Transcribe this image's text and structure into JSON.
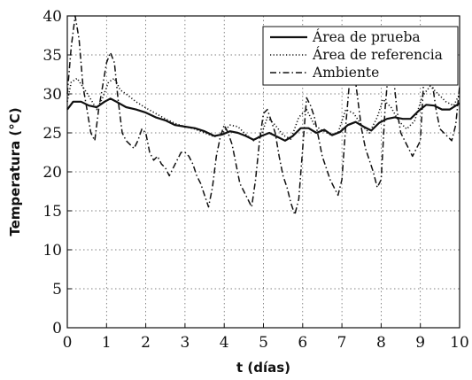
{
  "chart_data": {
    "type": "line",
    "title": "",
    "xlabel": "t (días)",
    "ylabel": "Temperatura (°C)",
    "xlim": [
      0,
      10
    ],
    "ylim": [
      0,
      40
    ],
    "xticks": [
      0,
      1,
      2,
      3,
      4,
      5,
      6,
      7,
      8,
      9,
      10
    ],
    "yticks": [
      0,
      5,
      10,
      15,
      20,
      25,
      30,
      35,
      40
    ],
    "grid": "dotted",
    "legend_position": "top-right",
    "series": [
      {
        "name": "Área de prueba",
        "style": "solid",
        "color": "#111111",
        "x": [
          0,
          0.15,
          0.35,
          0.55,
          0.75,
          0.95,
          1.1,
          1.25,
          1.5,
          1.75,
          2.0,
          2.25,
          2.5,
          2.75,
          3.0,
          3.25,
          3.5,
          3.75,
          3.95,
          4.15,
          4.35,
          4.55,
          4.75,
          4.95,
          5.15,
          5.35,
          5.55,
          5.75,
          5.95,
          6.15,
          6.35,
          6.55,
          6.75,
          6.95,
          7.15,
          7.35,
          7.55,
          7.75,
          7.95,
          8.15,
          8.35,
          8.55,
          8.75,
          8.95,
          9.15,
          9.35,
          9.55,
          9.75,
          10.0
        ],
        "values": [
          28.0,
          29.0,
          29.0,
          28.5,
          28.3,
          29.0,
          29.4,
          29.0,
          28.3,
          28.0,
          27.6,
          27.0,
          26.6,
          26.0,
          25.8,
          25.6,
          25.2,
          24.6,
          24.8,
          25.2,
          25.0,
          24.6,
          24.1,
          24.6,
          25.0,
          24.5,
          24.0,
          24.6,
          25.6,
          25.6,
          25.0,
          25.4,
          24.7,
          25.1,
          26.0,
          26.4,
          25.8,
          25.3,
          26.3,
          26.8,
          27.0,
          26.8,
          26.8,
          27.8,
          28.6,
          28.5,
          28.0,
          28.0,
          28.8
        ]
      },
      {
        "name": "Área de referencia",
        "style": "dotted",
        "color": "#111111",
        "x": [
          0,
          0.1,
          0.25,
          0.45,
          0.6,
          0.75,
          0.9,
          1.05,
          1.2,
          1.35,
          1.55,
          1.75,
          2.0,
          2.25,
          2.5,
          2.75,
          3.0,
          3.25,
          3.5,
          3.75,
          3.95,
          4.15,
          4.35,
          4.55,
          4.75,
          4.95,
          5.1,
          5.3,
          5.5,
          5.7,
          5.9,
          6.1,
          6.3,
          6.5,
          6.7,
          6.9,
          7.1,
          7.3,
          7.5,
          7.7,
          7.9,
          8.05,
          8.25,
          8.45,
          8.65,
          8.85,
          9.05,
          9.25,
          9.45,
          9.65,
          9.85,
          10.0
        ],
        "values": [
          29.0,
          31.5,
          32.0,
          30.5,
          29.3,
          28.0,
          29.5,
          31.5,
          32.0,
          30.5,
          29.8,
          29.0,
          28.2,
          27.5,
          26.8,
          26.2,
          25.8,
          25.5,
          25.0,
          24.5,
          25.0,
          26.0,
          25.8,
          24.8,
          24.0,
          24.8,
          27.0,
          26.0,
          24.7,
          24.2,
          27.0,
          28.0,
          26.0,
          25.3,
          24.8,
          25.0,
          28.0,
          27.5,
          26.0,
          25.0,
          27.0,
          29.3,
          28.3,
          26.5,
          25.5,
          26.5,
          29.7,
          31.0,
          30.0,
          29.0,
          28.5,
          30.0
        ]
      },
      {
        "name": "Ambiente",
        "style": "dash-dot",
        "color": "#111111",
        "x": [
          0,
          0.1,
          0.2,
          0.3,
          0.4,
          0.5,
          0.6,
          0.7,
          0.8,
          0.9,
          1.0,
          1.1,
          1.2,
          1.3,
          1.4,
          1.5,
          1.6,
          1.7,
          1.8,
          1.9,
          2.0,
          2.1,
          2.2,
          2.3,
          2.4,
          2.5,
          2.6,
          2.7,
          2.8,
          2.9,
          3.0,
          3.1,
          3.2,
          3.3,
          3.4,
          3.5,
          3.6,
          3.7,
          3.8,
          3.9,
          4.0,
          4.1,
          4.2,
          4.3,
          4.4,
          4.5,
          4.6,
          4.7,
          4.8,
          4.9,
          5.0,
          5.1,
          5.2,
          5.3,
          5.4,
          5.5,
          5.6,
          5.7,
          5.8,
          5.9,
          6.0,
          6.1,
          6.2,
          6.3,
          6.4,
          6.5,
          6.6,
          6.7,
          6.8,
          6.9,
          7.0,
          7.1,
          7.2,
          7.3,
          7.4,
          7.5,
          7.6,
          7.7,
          7.8,
          7.9,
          8.0,
          8.1,
          8.2,
          8.3,
          8.4,
          8.5,
          8.6,
          8.7,
          8.8,
          8.9,
          9.0,
          9.1,
          9.2,
          9.3,
          9.4,
          9.5,
          9.6,
          9.7,
          9.8,
          9.9,
          10.0
        ],
        "values": [
          30.0,
          36.0,
          40.0,
          37.0,
          31.0,
          28.0,
          25.0,
          24.0,
          28.0,
          31.0,
          34.0,
          35.3,
          34.0,
          29.0,
          25.0,
          24.0,
          23.5,
          23.0,
          24.0,
          25.5,
          25.0,
          22.5,
          21.5,
          22.0,
          21.0,
          20.5,
          19.5,
          20.5,
          21.5,
          22.5,
          22.5,
          22.0,
          21.0,
          19.5,
          18.5,
          17.0,
          15.5,
          18.0,
          22.0,
          24.5,
          26.0,
          25.0,
          23.5,
          21.0,
          18.5,
          17.5,
          16.5,
          15.5,
          19.0,
          24.0,
          27.5,
          28.0,
          26.5,
          25.0,
          22.0,
          19.5,
          18.0,
          16.0,
          14.5,
          16.5,
          23.0,
          29.5,
          28.5,
          27.0,
          24.5,
          22.0,
          20.5,
          19.0,
          18.0,
          17.0,
          19.0,
          26.0,
          32.0,
          33.5,
          29.5,
          25.5,
          23.0,
          21.5,
          20.0,
          18.0,
          19.0,
          28.0,
          34.0,
          33.0,
          28.0,
          25.0,
          24.0,
          23.0,
          22.0,
          23.0,
          24.0,
          33.0,
          34.0,
          31.5,
          28.0,
          25.5,
          25.0,
          24.5,
          24.0,
          26.0,
          31.0
        ]
      }
    ]
  }
}
